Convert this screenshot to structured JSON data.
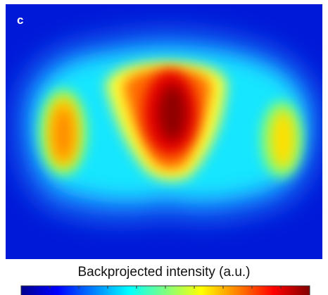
{
  "panel": {
    "label": "c"
  },
  "colorbar": {
    "label": "Backprojected intensity (a.u.)"
  }
}
